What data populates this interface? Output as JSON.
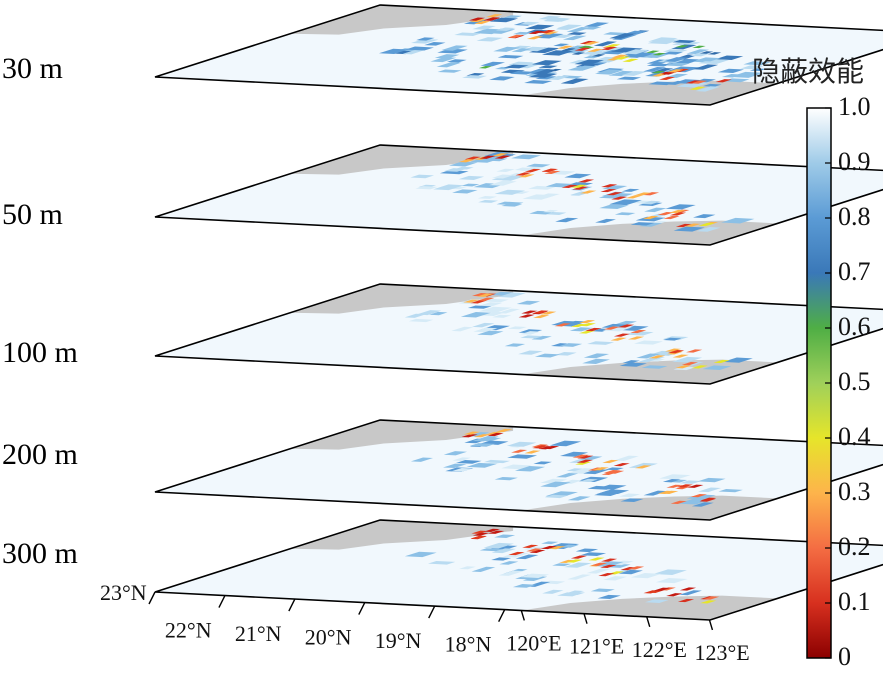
{
  "chart_data": {
    "type": "heatmap",
    "title": "",
    "colorbar": {
      "title": "隐蔽效能",
      "range": [
        0,
        1.0
      ],
      "ticks": [
        "0",
        "0.1",
        "0.2",
        "0.3",
        "0.4",
        "0.5",
        "0.6",
        "0.7",
        "0.8",
        "0.9",
        "1.0"
      ],
      "colors": [
        "#8b0000",
        "#d7301f",
        "#f46d43",
        "#fdb44b",
        "#e6e52a",
        "#4fae45",
        "#3a78b8",
        "#5b9bd5",
        "#9fcbe8",
        "#d6ebf7",
        "#ffffff"
      ]
    },
    "layers": [
      {
        "depth_label": "30 m"
      },
      {
        "depth_label": "50 m"
      },
      {
        "depth_label": "100 m"
      },
      {
        "depth_label": "200 m"
      },
      {
        "depth_label": "300 m"
      }
    ],
    "lat_ticks": [
      "23°N",
      "22°N",
      "21°N",
      "20°N",
      "19°N",
      "18°N"
    ],
    "lon_ticks": [
      "120°E",
      "121°E",
      "122°E",
      "123°E"
    ],
    "land_color": "#c8c8c8"
  }
}
